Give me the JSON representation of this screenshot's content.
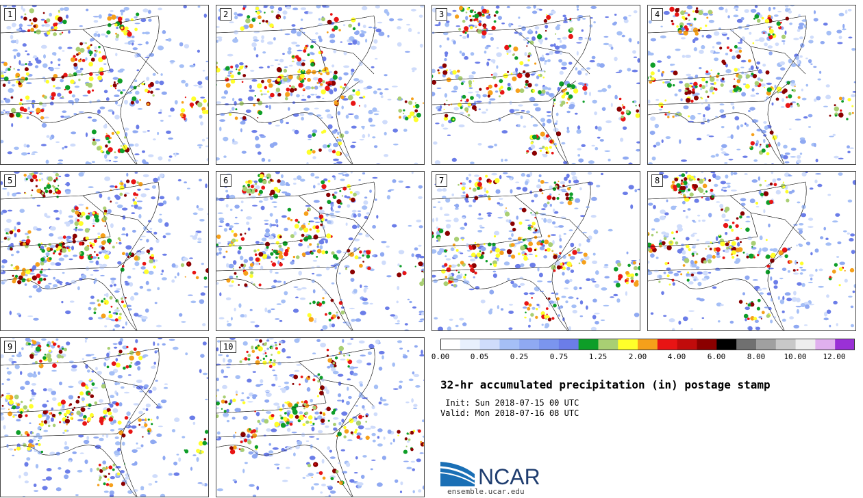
{
  "panels": [
    {
      "label": "1"
    },
    {
      "label": "2"
    },
    {
      "label": "3"
    },
    {
      "label": "4"
    },
    {
      "label": "5"
    },
    {
      "label": "6"
    },
    {
      "label": "7"
    },
    {
      "label": "8"
    },
    {
      "label": "9"
    },
    {
      "label": "10"
    }
  ],
  "colorbar": {
    "colors": [
      "#ffffff",
      "#e8f0fd",
      "#cfdcfb",
      "#a5bff6",
      "#8fa9f2",
      "#7b95ee",
      "#6b7de8",
      "#0e9e28",
      "#a9cf73",
      "#ffff2a",
      "#f6a01a",
      "#e81414",
      "#c10b0b",
      "#8b0000",
      "#000000",
      "#707070",
      "#a0a0a0",
      "#c8c8c8",
      "#eeeeee",
      "#e0b0ee",
      "#9a30d6"
    ],
    "ticks": [
      "0.00",
      "0.05",
      "0.25",
      "0.75",
      "1.25",
      "2.00",
      "4.00",
      "6.00",
      "8.00",
      "10.00",
      "12.00"
    ]
  },
  "title": "32-hr accumulated precipitation (in) postage stamp",
  "init": " Init: Sun 2018-07-15 00 UTC",
  "valid": "Valid: Mon 2018-07-16 08 UTC",
  "logo_text": "NCAR",
  "url": "ensemble.ucar.edu"
}
